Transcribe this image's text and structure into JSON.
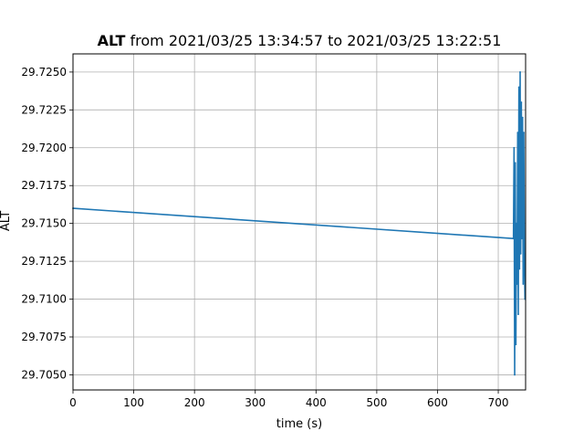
{
  "chart_data": {
    "type": "line",
    "title_bold": "ALT",
    "title_rest": " from 2021/03/25 13:34:57 to 2021/03/25 13:22:51",
    "xlabel": "time (s)",
    "ylabel": "ALT",
    "xlim": [
      0,
      745
    ],
    "ylim": [
      29.704,
      29.7262
    ],
    "grid": true,
    "xticks": [
      {
        "value": 0,
        "label": "0"
      },
      {
        "value": 100,
        "label": "100"
      },
      {
        "value": 200,
        "label": "200"
      },
      {
        "value": 300,
        "label": "300"
      },
      {
        "value": 400,
        "label": "400"
      },
      {
        "value": 500,
        "label": "500"
      },
      {
        "value": 600,
        "label": "600"
      },
      {
        "value": 700,
        "label": "700"
      }
    ],
    "yticks": [
      {
        "value": 29.705,
        "label": "29.7050"
      },
      {
        "value": 29.7075,
        "label": "29.7075"
      },
      {
        "value": 29.71,
        "label": "29.7100"
      },
      {
        "value": 29.7125,
        "label": "29.7125"
      },
      {
        "value": 29.715,
        "label": "29.7150"
      },
      {
        "value": 29.7175,
        "label": "29.7175"
      },
      {
        "value": 29.72,
        "label": "29.7200"
      },
      {
        "value": 29.7225,
        "label": "29.7225"
      },
      {
        "value": 29.725,
        "label": "29.7250"
      }
    ],
    "series": [
      {
        "color": "#1f77b4",
        "x": [
          0,
          725,
          726,
          727,
          728,
          729,
          730,
          731,
          732,
          733,
          734,
          735,
          736,
          737,
          738,
          739,
          740,
          741,
          742,
          743,
          744
        ],
        "y": [
          29.716,
          29.714,
          29.72,
          29.705,
          29.719,
          29.707,
          29.715,
          29.711,
          29.721,
          29.709,
          29.724,
          29.712,
          29.725,
          29.713,
          29.723,
          29.714,
          29.722,
          29.711,
          29.721,
          29.713,
          29.71
        ]
      }
    ]
  }
}
